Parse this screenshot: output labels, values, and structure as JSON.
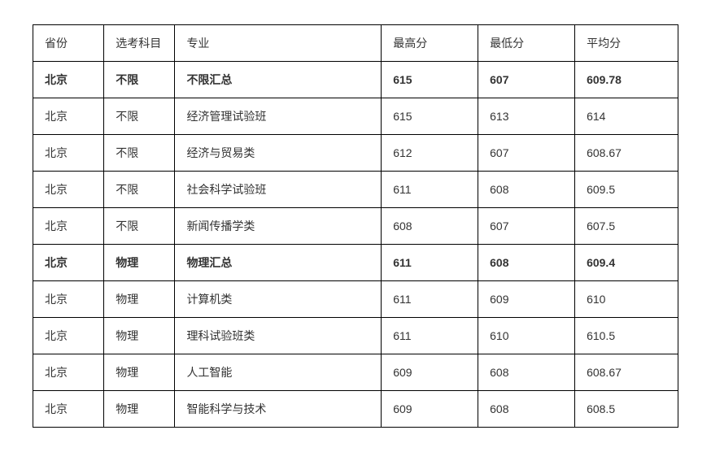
{
  "table": {
    "columns": [
      "省份",
      "选考科目",
      "专业",
      "最高分",
      "最低分",
      "平均分"
    ],
    "column_widths": [
      "11%",
      "11%",
      "32%",
      "15%",
      "15%",
      "16%"
    ],
    "border_color": "#000000",
    "text_color": "#333333",
    "background_color": "#ffffff",
    "font_size": 14,
    "cell_padding": "12px 14px",
    "rows": [
      {
        "cells": [
          "北京",
          "不限",
          "不限汇总",
          "615",
          "607",
          "609.78"
        ],
        "bold": true
      },
      {
        "cells": [
          "北京",
          "不限",
          "经济管理试验班",
          "615",
          "613",
          "614"
        ],
        "bold": false
      },
      {
        "cells": [
          "北京",
          "不限",
          "经济与贸易类",
          "612",
          "607",
          "608.67"
        ],
        "bold": false
      },
      {
        "cells": [
          "北京",
          "不限",
          "社会科学试验班",
          "611",
          "608",
          "609.5"
        ],
        "bold": false
      },
      {
        "cells": [
          "北京",
          "不限",
          "新闻传播学类",
          "608",
          "607",
          "607.5"
        ],
        "bold": false
      },
      {
        "cells": [
          "北京",
          "物理",
          "物理汇总",
          "611",
          "608",
          "609.4"
        ],
        "bold": true
      },
      {
        "cells": [
          "北京",
          "物理",
          "计算机类",
          "611",
          "609",
          "610"
        ],
        "bold": false
      },
      {
        "cells": [
          "北京",
          "物理",
          "理科试验班类",
          "611",
          "610",
          "610.5"
        ],
        "bold": false
      },
      {
        "cells": [
          "北京",
          "物理",
          "人工智能",
          "609",
          "608",
          "608.67"
        ],
        "bold": false
      },
      {
        "cells": [
          "北京",
          "物理",
          "智能科学与技术",
          "609",
          "608",
          "608.5"
        ],
        "bold": false
      }
    ]
  }
}
